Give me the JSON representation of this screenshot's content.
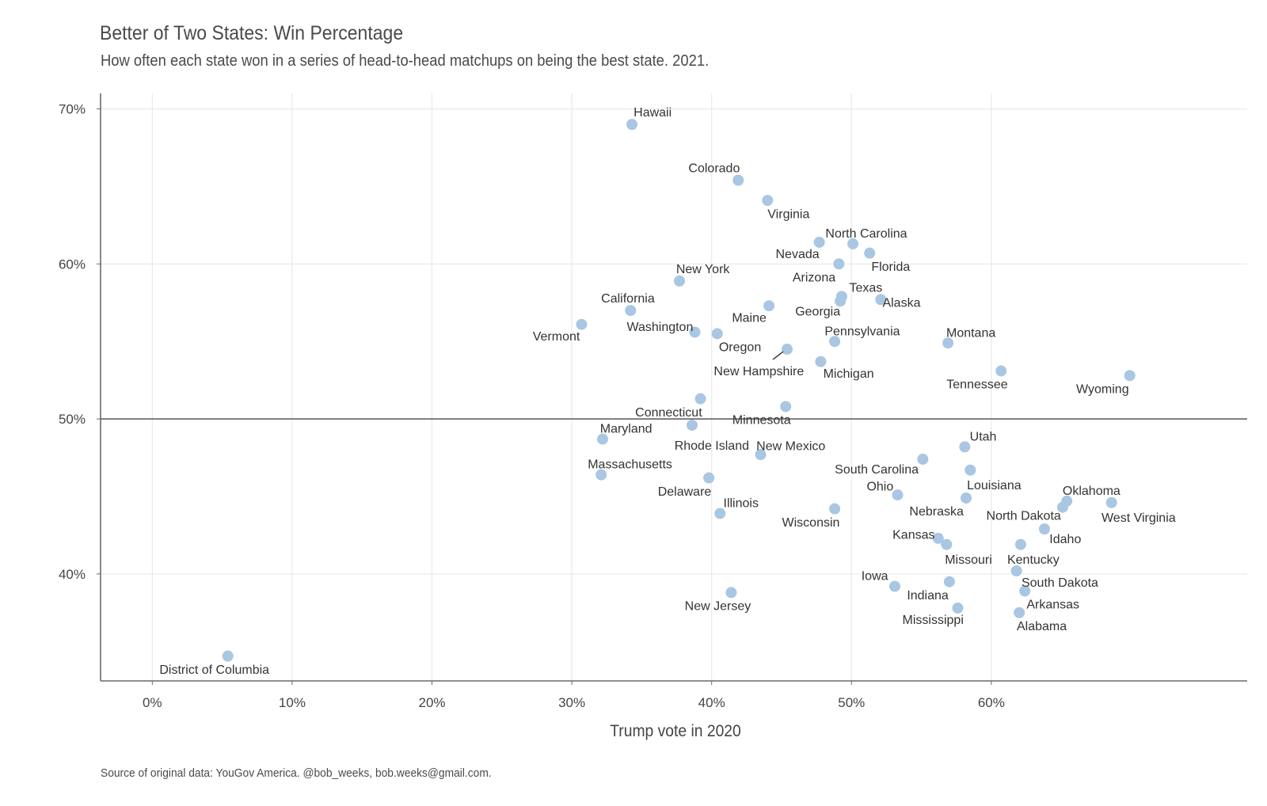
{
  "header": {
    "title": "Better of Two States: Win Percentage",
    "subtitle": "How often each state won in a series of head-to-head matchups on being the best state. 2021."
  },
  "footer": {
    "caption": "Source of original data: YouGov America. @bob_weeks, bob.weeks@gmail.com."
  },
  "colors": {
    "point": "#a9c6e3",
    "grid": "#e6e6e6",
    "axis": "#6a6a6a",
    "refline": "#555555",
    "text": "#444444"
  },
  "chart_data": {
    "type": "scatter",
    "xlabel": "Trump vote in 2020",
    "ylabel": "",
    "xlim": [
      -3.7,
      78.3
    ],
    "ylim": [
      33.1,
      71.0
    ],
    "xticks": [
      0,
      10,
      20,
      30,
      40,
      50,
      60
    ],
    "xtick_labels": [
      "0%",
      "10%",
      "20%",
      "30%",
      "40%",
      "50%",
      "60%"
    ],
    "yticks": [
      40,
      50,
      60,
      70
    ],
    "ytick_labels": [
      "40%",
      "50%",
      "60%",
      "70%"
    ],
    "reference_line_y": 50,
    "grid": true,
    "points": [
      {
        "name": "Hawaii",
        "x": 34.3,
        "y": 69.0,
        "anchor": "start",
        "lx": 0.2,
        "ly": 0.7
      },
      {
        "name": "Colorado",
        "x": 41.9,
        "y": 65.4,
        "anchor": "end",
        "lx": 0.2,
        "ly": 0.7
      },
      {
        "name": "Virginia",
        "x": 44.0,
        "y": 64.1,
        "anchor": "start",
        "lx": 0.0,
        "ly": -0.8
      },
      {
        "name": "North Carolina",
        "x": 50.1,
        "y": 61.3,
        "anchor": "middle",
        "lx": 1.6,
        "ly": 0.6
      },
      {
        "name": "Nevada",
        "x": 47.7,
        "y": 61.4,
        "anchor": "end",
        "lx": 0.0,
        "ly": -0.7
      },
      {
        "name": "Florida",
        "x": 51.3,
        "y": 60.7,
        "anchor": "start",
        "lx": 0.2,
        "ly": -0.8
      },
      {
        "name": "Arizona",
        "x": 49.1,
        "y": 60.0,
        "anchor": "end",
        "lx": -0.4,
        "ly": -0.8
      },
      {
        "name": "New York",
        "x": 37.7,
        "y": 58.9,
        "anchor": "start",
        "lx": -0.4,
        "ly": 0.7
      },
      {
        "name": "Texas",
        "x": 49.3,
        "y": 57.9,
        "anchor": "start",
        "lx": 0.9,
        "ly": 0.5
      },
      {
        "name": "Georgia",
        "x": 49.2,
        "y": 57.6,
        "anchor": "end",
        "lx": 0.0,
        "ly": -0.6
      },
      {
        "name": "Alaska",
        "x": 52.1,
        "y": 57.7,
        "anchor": "start",
        "lx": 0.2,
        "ly": -0.2
      },
      {
        "name": "California",
        "x": 34.2,
        "y": 57.0,
        "anchor": "start",
        "lx": -3.5,
        "ly": 0.7
      },
      {
        "name": "Maine",
        "x": 44.1,
        "y": 57.3,
        "anchor": "end",
        "lx": -0.3,
        "ly": -0.7
      },
      {
        "name": "Vermont",
        "x": 30.7,
        "y": 56.1,
        "anchor": "end",
        "lx": -0.2,
        "ly": -0.7
      },
      {
        "name": "Washington",
        "x": 38.8,
        "y": 55.6,
        "anchor": "end",
        "lx": -0.2,
        "ly": 0.3
      },
      {
        "name": "Oregon",
        "x": 40.4,
        "y": 55.5,
        "anchor": "start",
        "lx": 0.2,
        "ly": -0.8
      },
      {
        "name": "Alaska2",
        "x": 53.1,
        "y": 56.9,
        "anchor": "start",
        "lx": 0.6,
        "ly": 0.0,
        "hide": true
      },
      {
        "name": "Pennsylvania",
        "x": 48.8,
        "y": 55.0,
        "anchor": "start",
        "lx": -1.2,
        "ly": 0.6
      },
      {
        "name": "Montana",
        "x": 56.9,
        "y": 54.9,
        "anchor": "start",
        "lx": -0.2,
        "ly": 0.6
      },
      {
        "name": "New Hampshire",
        "x": 45.4,
        "y": 54.5,
        "anchor": "end",
        "lx": 2.0,
        "ly": -1.3,
        "leader": true
      },
      {
        "name": "Michigan",
        "x": 47.8,
        "y": 53.7,
        "anchor": "start",
        "lx": 0.3,
        "ly": -0.7
      },
      {
        "name": "Tennessee",
        "x": 60.7,
        "y": 53.1,
        "anchor": "end",
        "lx": 0.8,
        "ly": -0.8
      },
      {
        "name": "Wyoming",
        "x": 69.9,
        "y": 52.8,
        "anchor": "end",
        "lx": -0.1,
        "ly": -0.8
      },
      {
        "name": "Connecticut",
        "x": 39.2,
        "y": 51.3,
        "anchor": "end",
        "lx": 0.2,
        "ly": -0.8
      },
      {
        "name": "Minnesota",
        "x": 45.3,
        "y": 50.8,
        "anchor": "end",
        "lx": 0.6,
        "ly": -0.8
      },
      {
        "name": "Rhode Island",
        "x": 38.6,
        "y": 49.6,
        "anchor": "start",
        "lx": -2.1,
        "ly": -1.2
      },
      {
        "name": "Maryland",
        "x": 32.2,
        "y": 48.7,
        "anchor": "start",
        "lx": -0.3,
        "ly": 0.6
      },
      {
        "name": "New Mexico",
        "x": 43.5,
        "y": 47.7,
        "anchor": "start",
        "lx": -0.5,
        "ly": 0.5
      },
      {
        "name": "Utah",
        "x": 58.1,
        "y": 48.2,
        "anchor": "start",
        "lx": 0.6,
        "ly": 0.6
      },
      {
        "name": "South Carolina",
        "x": 55.1,
        "y": 47.4,
        "anchor": "end",
        "lx": -0.5,
        "ly": -0.6
      },
      {
        "name": "Louisiana",
        "x": 58.5,
        "y": 46.7,
        "anchor": "start",
        "lx": -0.4,
        "ly": -0.9
      },
      {
        "name": "Massachusetts",
        "x": 32.1,
        "y": 46.4,
        "anchor": "start",
        "lx": -1.6,
        "ly": 0.6
      },
      {
        "name": "Delaware",
        "x": 39.8,
        "y": 46.2,
        "anchor": "end",
        "lx": 0.3,
        "ly": -0.8
      },
      {
        "name": "Ohio",
        "x": 53.3,
        "y": 45.1,
        "anchor": "end",
        "lx": -0.5,
        "ly": 0.5
      },
      {
        "name": "Nebraska",
        "x": 58.2,
        "y": 44.9,
        "anchor": "end",
        "lx": -0.3,
        "ly": -0.8
      },
      {
        "name": "Oklahoma",
        "x": 65.4,
        "y": 44.7,
        "anchor": "start",
        "lx": -0.5,
        "ly": 0.6
      },
      {
        "name": "West Virginia",
        "x": 68.6,
        "y": 44.6,
        "anchor": "start",
        "lx": -1.2,
        "ly": -0.9
      },
      {
        "name": "North Dakota",
        "x": 65.1,
        "y": 44.3,
        "anchor": "end",
        "lx": -0.2,
        "ly": -0.5
      },
      {
        "name": "Illinois",
        "x": 40.6,
        "y": 43.9,
        "anchor": "start",
        "lx": 0.4,
        "ly": 0.6
      },
      {
        "name": "Wisconsin",
        "x": 48.8,
        "y": 44.2,
        "anchor": "end",
        "lx": 0.6,
        "ly": -0.8
      },
      {
        "name": "Idaho",
        "x": 63.8,
        "y": 42.9,
        "anchor": "start",
        "lx": 0.6,
        "ly": -0.6
      },
      {
        "name": "Kansas",
        "x": 56.2,
        "y": 42.3,
        "anchor": "end",
        "lx": -0.4,
        "ly": 0.2
      },
      {
        "name": "Missouri",
        "x": 56.8,
        "y": 41.9,
        "anchor": "start",
        "lx": -0.2,
        "ly": -0.9
      },
      {
        "name": "Kentucky",
        "x": 62.1,
        "y": 41.9,
        "anchor": "start",
        "lx": -1.6,
        "ly": -0.9
      },
      {
        "name": "South Dakota",
        "x": 61.8,
        "y": 40.2,
        "anchor": "start",
        "lx": 0.6,
        "ly": -0.7
      },
      {
        "name": "Iowa",
        "x": 53.1,
        "y": 39.2,
        "anchor": "end",
        "lx": -0.8,
        "ly": 0.6
      },
      {
        "name": "Indiana",
        "x": 57.0,
        "y": 39.5,
        "anchor": "end",
        "lx": -0.1,
        "ly": -0.8
      },
      {
        "name": "Arkansas",
        "x": 62.4,
        "y": 38.9,
        "anchor": "start",
        "lx": 0.2,
        "ly": -0.8
      },
      {
        "name": "New Jersey",
        "x": 41.4,
        "y": 38.8,
        "anchor": "middle",
        "lx": -1.6,
        "ly": -0.8
      },
      {
        "name": "Mississippi",
        "x": 57.6,
        "y": 37.8,
        "anchor": "end",
        "lx": 0.7,
        "ly": -0.7
      },
      {
        "name": "Alabama",
        "x": 62.0,
        "y": 37.5,
        "anchor": "start",
        "lx": -0.3,
        "ly": -0.8
      },
      {
        "name": "District of Columbia",
        "x": 5.4,
        "y": 34.7,
        "anchor": "middle",
        "lx": -1.6,
        "ly": -0.8
      }
    ]
  }
}
